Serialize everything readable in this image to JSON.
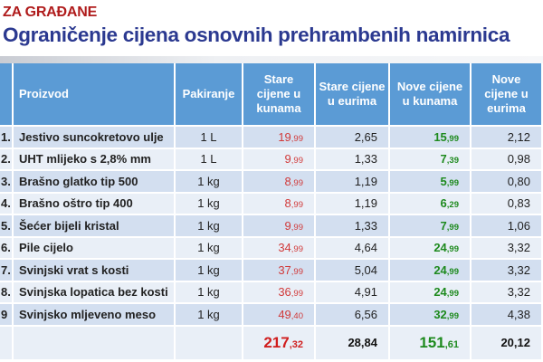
{
  "header": {
    "subtitle": "ZA GRAĐANE",
    "title": "Ograničenje cijena osnovnih prehrambenih namirnica"
  },
  "colors": {
    "subtitle": "#b01c1c",
    "title": "#2b3990",
    "header_bg": "#5b9bd5",
    "row_odd": "#d3dff0",
    "row_even": "#e9eff7",
    "old_price": "#d13a3a",
    "new_price": "#1e8a1e"
  },
  "table": {
    "columns": [
      "",
      "Proizvod",
      "Pakiranje",
      "Stare cijene u kunama",
      "Stare cijene u eurima",
      "Nove cijene u kunama",
      "Nove cijene u eurima"
    ],
    "rows": [
      {
        "num": "1.",
        "product": "Jestivo suncokretovo ulje",
        "pack": "1 L",
        "old_kn_int": "19",
        "old_kn_dec": ",99",
        "old_eur": "2,65",
        "new_kn_int": "15",
        "new_kn_dec": ",99",
        "new_eur": "2,12"
      },
      {
        "num": "2.",
        "product": "UHT mlijeko s 2,8% mm",
        "pack": "1 L",
        "old_kn_int": "9",
        "old_kn_dec": ",99",
        "old_eur": "1,33",
        "new_kn_int": "7",
        "new_kn_dec": ",39",
        "new_eur": "0,98"
      },
      {
        "num": "3.",
        "product": "Brašno glatko tip 500",
        "pack": "1 kg",
        "old_kn_int": "8",
        "old_kn_dec": ",99",
        "old_eur": "1,19",
        "new_kn_int": "5",
        "new_kn_dec": ",99",
        "new_eur": "0,80"
      },
      {
        "num": "4.",
        "product": "Brašno oštro tip 400",
        "pack": "1 kg",
        "old_kn_int": "8",
        "old_kn_dec": ",99",
        "old_eur": "1,19",
        "new_kn_int": "6",
        "new_kn_dec": ",29",
        "new_eur": "0,83"
      },
      {
        "num": "5.",
        "product": "Šećer bijeli kristal",
        "pack": "1 kg",
        "old_kn_int": "9",
        "old_kn_dec": ",99",
        "old_eur": "1,33",
        "new_kn_int": "7",
        "new_kn_dec": ",99",
        "new_eur": "1,06"
      },
      {
        "num": "6.",
        "product": "Pile cijelo",
        "pack": "1 kg",
        "old_kn_int": "34",
        "old_kn_dec": ",99",
        "old_eur": "4,64",
        "new_kn_int": "24",
        "new_kn_dec": ",99",
        "new_eur": "3,32"
      },
      {
        "num": "7.",
        "product": "Svinjski vrat s kosti",
        "pack": "1 kg",
        "old_kn_int": "37",
        "old_kn_dec": ",99",
        "old_eur": "5,04",
        "new_kn_int": "24",
        "new_kn_dec": ",99",
        "new_eur": "3,32"
      },
      {
        "num": "8.",
        "product": "Svinjska lopatica bez kosti",
        "pack": "1 kg",
        "old_kn_int": "36",
        "old_kn_dec": ",99",
        "old_eur": "4,91",
        "new_kn_int": "24",
        "new_kn_dec": ",99",
        "new_eur": "3,32"
      },
      {
        "num": "9",
        "product": "Svinjsko mljeveno meso",
        "pack": "1 kg",
        "old_kn_int": "49",
        "old_kn_dec": ",40",
        "old_eur": "6,56",
        "new_kn_int": "32",
        "new_kn_dec": ",99",
        "new_eur": "4,38"
      }
    ],
    "totals": {
      "old_kn_int": "217",
      "old_kn_dec": ",32",
      "old_eur": "28,84",
      "new_kn_int": "151",
      "new_kn_dec": ",61",
      "new_eur": "20,12"
    }
  }
}
